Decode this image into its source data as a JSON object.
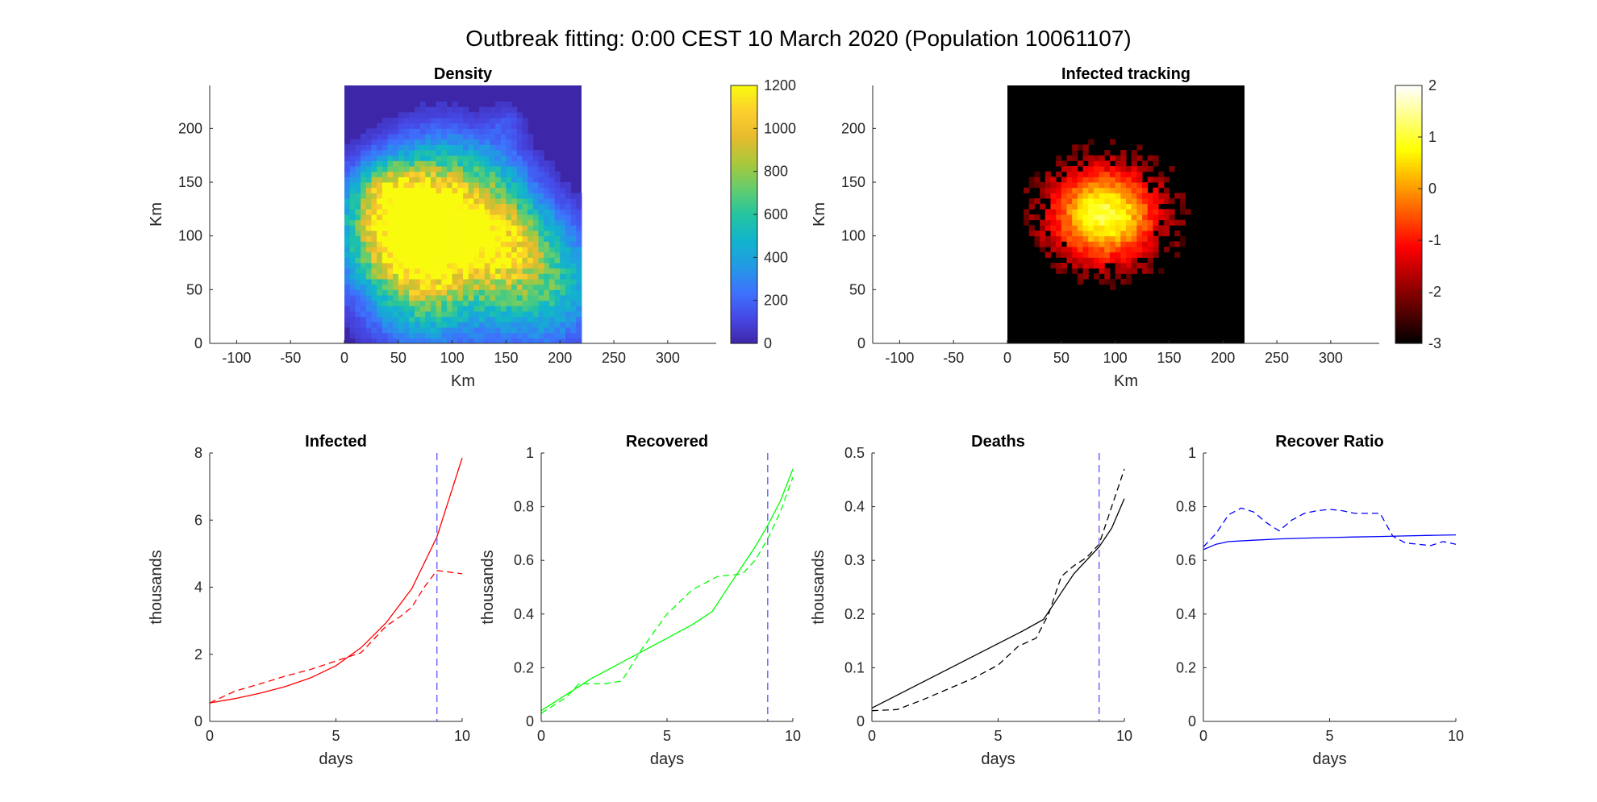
{
  "figure": {
    "title": "Outbreak fitting: 0:00 CEST 10 March 2020 (Population 10061107)"
  },
  "colors": {
    "infected": "#ff0000",
    "recovered": "#00ff00",
    "deaths": "#000000",
    "ratio": "#0000ff",
    "marker": "#6a6aff",
    "density_bg": "#3e26a8"
  },
  "chart_data": [
    {
      "id": "density",
      "type": "heatmap",
      "title": "Density",
      "xlabel": "Km",
      "ylabel": "Km",
      "xlim": [
        -125,
        345
      ],
      "ylim": [
        0,
        240
      ],
      "xticks": [
        -100,
        -50,
        0,
        50,
        100,
        150,
        200,
        250,
        300
      ],
      "yticks": [
        0,
        50,
        100,
        150,
        200
      ],
      "extent": {
        "x": [
          0,
          220
        ],
        "y": [
          0,
          240
        ]
      },
      "colormap": "parula",
      "colorbar": {
        "min": 0,
        "max": 1200,
        "ticks": [
          0,
          200,
          400,
          600,
          800,
          1000,
          1200
        ]
      },
      "blobs": [
        {
          "x": 55,
          "y": 105,
          "r": 38,
          "v": 1100
        },
        {
          "x": 85,
          "y": 115,
          "r": 34,
          "v": 420
        },
        {
          "x": 120,
          "y": 105,
          "r": 40,
          "v": 500
        },
        {
          "x": 150,
          "y": 100,
          "r": 26,
          "v": 400
        },
        {
          "x": 185,
          "y": 55,
          "r": 38,
          "v": 560
        },
        {
          "x": 100,
          "y": 70,
          "r": 50,
          "v": 330
        },
        {
          "x": 40,
          "y": 145,
          "r": 18,
          "v": 380
        },
        {
          "x": 90,
          "y": 170,
          "r": 30,
          "v": 200
        },
        {
          "x": 140,
          "y": 160,
          "r": 22,
          "v": 180
        },
        {
          "x": 150,
          "y": 205,
          "r": 12,
          "v": 110
        },
        {
          "x": 70,
          "y": 35,
          "r": 30,
          "v": 260
        }
      ]
    },
    {
      "id": "infected-tracking",
      "type": "heatmap",
      "title": "Infected tracking",
      "xlabel": "Km",
      "ylabel": "Km",
      "xlim": [
        -125,
        345
      ],
      "ylim": [
        0,
        240
      ],
      "xticks": [
        -100,
        -50,
        0,
        50,
        100,
        150,
        200,
        250,
        300
      ],
      "yticks": [
        0,
        50,
        100,
        150,
        200
      ],
      "extent": {
        "x": [
          0,
          220
        ],
        "y": [
          0,
          240
        ]
      },
      "colormap": "hot",
      "center": {
        "x": 90,
        "y": 120
      },
      "colorbar": {
        "min": -3,
        "max": 2,
        "ticks": [
          -3,
          -2,
          -1,
          0,
          1,
          2
        ]
      }
    },
    {
      "id": "infected",
      "type": "line",
      "title": "Infected",
      "xlabel": "days",
      "ylabel": "thousands",
      "xlim": [
        0,
        10
      ],
      "ylim": [
        0,
        8
      ],
      "xticks": [
        0,
        5,
        10
      ],
      "yticks": [
        0,
        2,
        4,
        6,
        8
      ],
      "vline": 9,
      "series": [
        {
          "style": "solid",
          "x": [
            0,
            1,
            2,
            3,
            4,
            5,
            6,
            7,
            8,
            9,
            10
          ],
          "y": [
            0.55,
            0.68,
            0.84,
            1.04,
            1.3,
            1.66,
            2.2,
            2.95,
            3.95,
            5.5,
            7.85
          ]
        },
        {
          "style": "dashed",
          "x": [
            0,
            1,
            2,
            3,
            4,
            5,
            6,
            6.5,
            7,
            7.5,
            8,
            8.5,
            9,
            9.5,
            10
          ],
          "y": [
            0.55,
            0.9,
            1.12,
            1.35,
            1.55,
            1.8,
            2.05,
            2.45,
            2.85,
            3.1,
            3.4,
            4.0,
            4.5,
            4.45,
            4.4
          ]
        }
      ]
    },
    {
      "id": "recovered",
      "type": "line",
      "title": "Recovered",
      "xlabel": "days",
      "ylabel": "thousands",
      "xlim": [
        0,
        10
      ],
      "ylim": [
        0,
        1
      ],
      "xticks": [
        0,
        5,
        10
      ],
      "yticks": [
        0,
        0.2,
        0.4,
        0.6,
        0.8,
        1
      ],
      "vline": 9,
      "series": [
        {
          "style": "solid",
          "x": [
            0,
            1,
            2,
            3,
            4,
            5,
            6,
            6.8,
            7.5,
            8,
            8.5,
            9,
            9.5,
            10
          ],
          "y": [
            0.04,
            0.1,
            0.16,
            0.21,
            0.26,
            0.31,
            0.36,
            0.41,
            0.51,
            0.58,
            0.65,
            0.73,
            0.82,
            0.94
          ]
        },
        {
          "style": "dashed",
          "x": [
            0,
            1,
            1.5,
            2,
            2.5,
            3.2,
            4,
            5,
            6,
            7,
            8,
            8.5,
            9,
            9.5,
            10
          ],
          "y": [
            0.03,
            0.09,
            0.14,
            0.14,
            0.14,
            0.15,
            0.27,
            0.4,
            0.49,
            0.54,
            0.55,
            0.6,
            0.68,
            0.78,
            0.91
          ]
        }
      ]
    },
    {
      "id": "deaths",
      "type": "line",
      "title": "Deaths",
      "xlabel": "days",
      "ylabel": "thousands",
      "xlim": [
        0,
        10
      ],
      "ylim": [
        0,
        0.5
      ],
      "xticks": [
        0,
        5,
        10
      ],
      "yticks": [
        0,
        0.1,
        0.2,
        0.3,
        0.4,
        0.5
      ],
      "vline": 9,
      "series": [
        {
          "style": "solid",
          "x": [
            0,
            1,
            2,
            3,
            4,
            5,
            6,
            6.8,
            7.5,
            8,
            8.5,
            9,
            9.5,
            10
          ],
          "y": [
            0.025,
            0.049,
            0.073,
            0.097,
            0.121,
            0.145,
            0.169,
            0.19,
            0.24,
            0.275,
            0.3,
            0.325,
            0.36,
            0.415
          ]
        },
        {
          "style": "dashed",
          "x": [
            0,
            1,
            2,
            3,
            4,
            5,
            5.8,
            6.5,
            7,
            7.5,
            8,
            8.5,
            9,
            9.5,
            10
          ],
          "y": [
            0.02,
            0.022,
            0.04,
            0.06,
            0.08,
            0.105,
            0.14,
            0.155,
            0.2,
            0.27,
            0.29,
            0.305,
            0.33,
            0.4,
            0.47
          ]
        }
      ]
    },
    {
      "id": "recover-ratio",
      "type": "line",
      "title": "Recover Ratio",
      "xlabel": "days",
      "ylabel": "",
      "xlim": [
        0,
        10
      ],
      "ylim": [
        0,
        1
      ],
      "xticks": [
        0,
        5,
        10
      ],
      "yticks": [
        0,
        0.2,
        0.4,
        0.6,
        0.8,
        1
      ],
      "series": [
        {
          "style": "solid",
          "x": [
            0,
            0.5,
            1,
            2,
            3,
            4,
            5,
            6,
            7,
            8,
            9,
            10
          ],
          "y": [
            0.64,
            0.66,
            0.67,
            0.675,
            0.68,
            0.683,
            0.685,
            0.687,
            0.689,
            0.691,
            0.693,
            0.695
          ]
        },
        {
          "style": "dashed",
          "x": [
            0,
            0.5,
            1,
            1.5,
            2,
            2.5,
            3,
            3.5,
            4,
            4.5,
            5,
            5.5,
            6,
            6.5,
            7,
            7.5,
            8,
            8.5,
            9,
            9.5,
            10
          ],
          "y": [
            0.65,
            0.7,
            0.77,
            0.795,
            0.78,
            0.74,
            0.71,
            0.75,
            0.775,
            0.785,
            0.79,
            0.785,
            0.775,
            0.775,
            0.775,
            0.69,
            0.665,
            0.66,
            0.655,
            0.67,
            0.66
          ]
        }
      ]
    }
  ]
}
